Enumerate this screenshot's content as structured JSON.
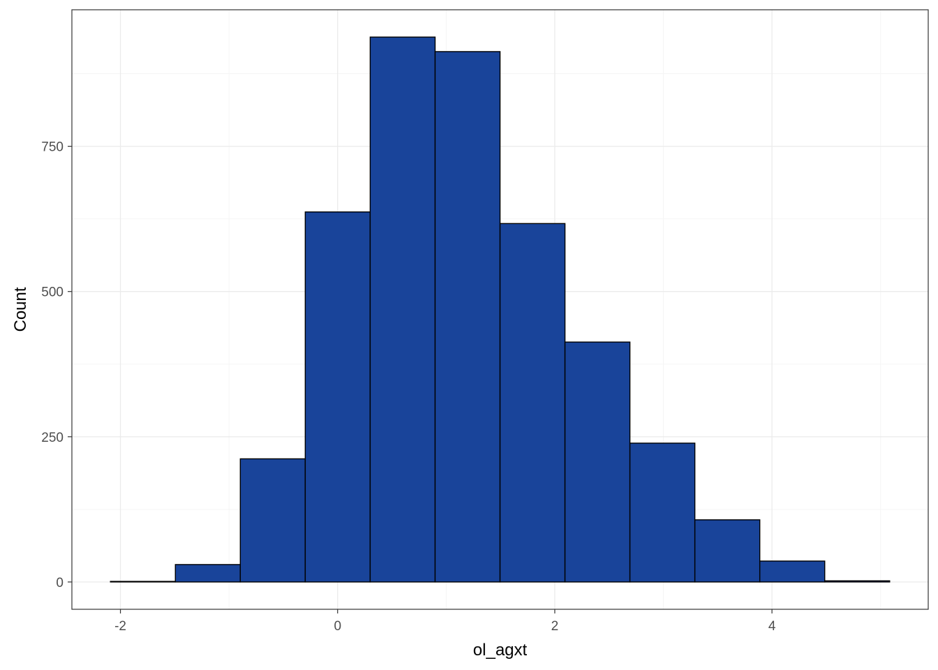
{
  "chart_data": {
    "type": "bar",
    "subtype": "histogram",
    "title": "",
    "xlabel": "ol_agxt",
    "ylabel": "Count",
    "bin_width": 0.598,
    "bins": [
      {
        "x_min": -2.092,
        "x_max": -1.494,
        "count": 1
      },
      {
        "x_min": -1.494,
        "x_max": -0.896,
        "count": 30
      },
      {
        "x_min": -0.896,
        "x_max": -0.298,
        "count": 212
      },
      {
        "x_min": -0.298,
        "x_max": 0.3,
        "count": 637
      },
      {
        "x_min": 0.3,
        "x_max": 0.898,
        "count": 938
      },
      {
        "x_min": 0.898,
        "x_max": 1.496,
        "count": 913
      },
      {
        "x_min": 1.496,
        "x_max": 2.094,
        "count": 617
      },
      {
        "x_min": 2.094,
        "x_max": 2.692,
        "count": 413
      },
      {
        "x_min": 2.692,
        "x_max": 3.29,
        "count": 239
      },
      {
        "x_min": 3.29,
        "x_max": 3.888,
        "count": 107
      },
      {
        "x_min": 3.888,
        "x_max": 4.486,
        "count": 36
      },
      {
        "x_min": 4.486,
        "x_max": 5.084,
        "count": 2
      }
    ],
    "xlim": [
      -2.447,
      5.439
    ],
    "ylim": [
      -47,
      985
    ],
    "x_ticks": [
      -2,
      0,
      2,
      4
    ],
    "x_tick_labels": [
      "-2",
      "0",
      "2",
      "4"
    ],
    "y_ticks": [
      0,
      250,
      500,
      750
    ],
    "y_tick_labels": [
      "0",
      "250",
      "500",
      "750"
    ],
    "grid": true,
    "legend": "none",
    "colors": {
      "bar_fill": "#19449A",
      "bar_stroke": "#000000",
      "grid_major": "#EBEBEB",
      "grid_minor": "#F5F5F5",
      "panel_border": "#333333",
      "tick_text": "#4D4D4D",
      "axis_title": "#000000"
    }
  }
}
